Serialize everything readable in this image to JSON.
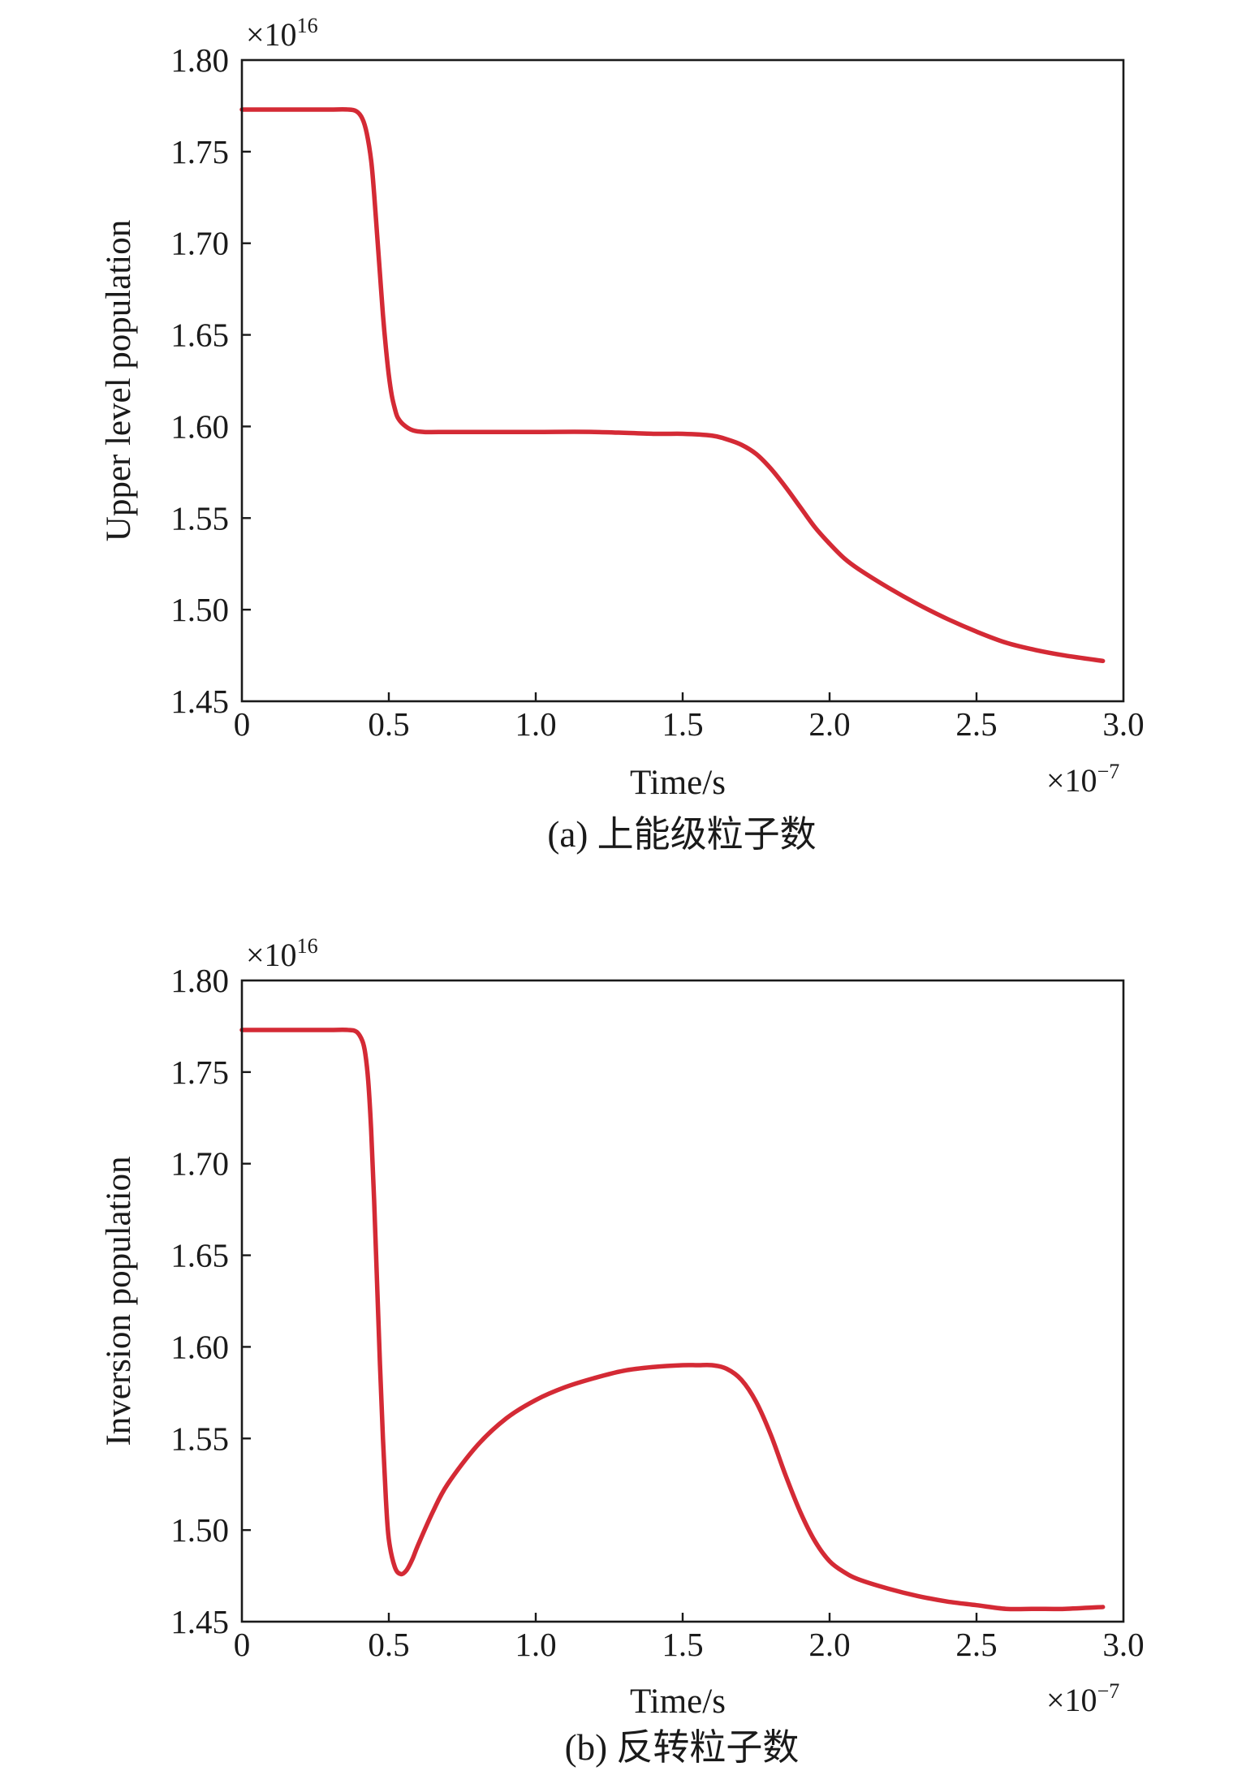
{
  "chart_data": [
    {
      "type": "line",
      "panel": "a",
      "caption": "(a) 上能级粒子数",
      "xlabel": "Time/s",
      "ylabel": "Upper level population",
      "x_multiplier": "×10",
      "x_multiplier_exp": "−7",
      "y_multiplier": "×10",
      "y_multiplier_exp": "16",
      "xlim": [
        0,
        3.0
      ],
      "ylim": [
        1.45,
        1.8
      ],
      "xticks": [
        "0",
        "0.5",
        "1.0",
        "1.5",
        "2.0",
        "2.5",
        "3.0"
      ],
      "xtick_values": [
        0,
        0.5,
        1.0,
        1.5,
        2.0,
        2.5,
        3.0
      ],
      "yticks": [
        "1.45",
        "1.50",
        "1.55",
        "1.60",
        "1.65",
        "1.70",
        "1.75",
        "1.80"
      ],
      "ytick_values": [
        1.45,
        1.5,
        1.55,
        1.6,
        1.65,
        1.7,
        1.75,
        1.8
      ],
      "grid": false,
      "line_color": "#d42a35",
      "series": [
        {
          "x": [
            0,
            0.1,
            0.2,
            0.3,
            0.36,
            0.39,
            0.41,
            0.425,
            0.44,
            0.45,
            0.46,
            0.47,
            0.48,
            0.49,
            0.5,
            0.51,
            0.52,
            0.53,
            0.55,
            0.58,
            0.62,
            0.7,
            0.8,
            1.0,
            1.2,
            1.4,
            1.5,
            1.6,
            1.65,
            1.7,
            1.75,
            1.8,
            1.85,
            1.9,
            1.95,
            2.0,
            2.05,
            2.1,
            2.2,
            2.3,
            2.4,
            2.5,
            2.6,
            2.7,
            2.8,
            2.93
          ],
          "y": [
            1.773,
            1.773,
            1.773,
            1.773,
            1.773,
            1.772,
            1.768,
            1.76,
            1.745,
            1.727,
            1.705,
            1.683,
            1.661,
            1.643,
            1.628,
            1.617,
            1.61,
            1.605,
            1.601,
            1.598,
            1.597,
            1.597,
            1.597,
            1.597,
            1.597,
            1.596,
            1.596,
            1.595,
            1.593,
            1.59,
            1.585,
            1.577,
            1.567,
            1.556,
            1.545,
            1.536,
            1.528,
            1.522,
            1.512,
            1.503,
            1.495,
            1.488,
            1.482,
            1.478,
            1.475,
            1.472
          ]
        }
      ]
    },
    {
      "type": "line",
      "panel": "b",
      "caption": "(b) 反转粒子数",
      "xlabel": "Time/s",
      "ylabel": "Inversion population",
      "x_multiplier": "×10",
      "x_multiplier_exp": "−7",
      "y_multiplier": "×10",
      "y_multiplier_exp": "16",
      "xlim": [
        0,
        3.0
      ],
      "ylim": [
        1.45,
        1.8
      ],
      "xticks": [
        "0",
        "0.5",
        "1.0",
        "1.5",
        "2.0",
        "2.5",
        "3.0"
      ],
      "xtick_values": [
        0,
        0.5,
        1.0,
        1.5,
        2.0,
        2.5,
        3.0
      ],
      "yticks": [
        "1.45",
        "1.50",
        "1.55",
        "1.60",
        "1.65",
        "1.70",
        "1.75",
        "1.80"
      ],
      "ytick_values": [
        1.45,
        1.5,
        1.55,
        1.6,
        1.65,
        1.7,
        1.75,
        1.8
      ],
      "grid": false,
      "line_color": "#d42a35",
      "series": [
        {
          "x": [
            0,
            0.1,
            0.2,
            0.3,
            0.36,
            0.39,
            0.41,
            0.42,
            0.43,
            0.44,
            0.45,
            0.46,
            0.47,
            0.48,
            0.49,
            0.5,
            0.52,
            0.54,
            0.56,
            0.58,
            0.6,
            0.65,
            0.7,
            0.8,
            0.9,
            1.0,
            1.1,
            1.2,
            1.3,
            1.4,
            1.5,
            1.55,
            1.6,
            1.65,
            1.7,
            1.75,
            1.8,
            1.85,
            1.9,
            1.95,
            2.0,
            2.05,
            2.1,
            2.2,
            2.3,
            2.4,
            2.5,
            2.6,
            2.7,
            2.8,
            2.93
          ],
          "y": [
            1.773,
            1.773,
            1.773,
            1.773,
            1.773,
            1.772,
            1.767,
            1.76,
            1.745,
            1.718,
            1.68,
            1.635,
            1.59,
            1.55,
            1.517,
            1.495,
            1.48,
            1.476,
            1.478,
            1.484,
            1.492,
            1.51,
            1.525,
            1.546,
            1.561,
            1.571,
            1.578,
            1.583,
            1.587,
            1.589,
            1.59,
            1.59,
            1.59,
            1.588,
            1.582,
            1.57,
            1.552,
            1.53,
            1.51,
            1.494,
            1.483,
            1.477,
            1.473,
            1.468,
            1.464,
            1.461,
            1.459,
            1.457,
            1.457,
            1.457,
            1.458
          ]
        }
      ]
    }
  ]
}
